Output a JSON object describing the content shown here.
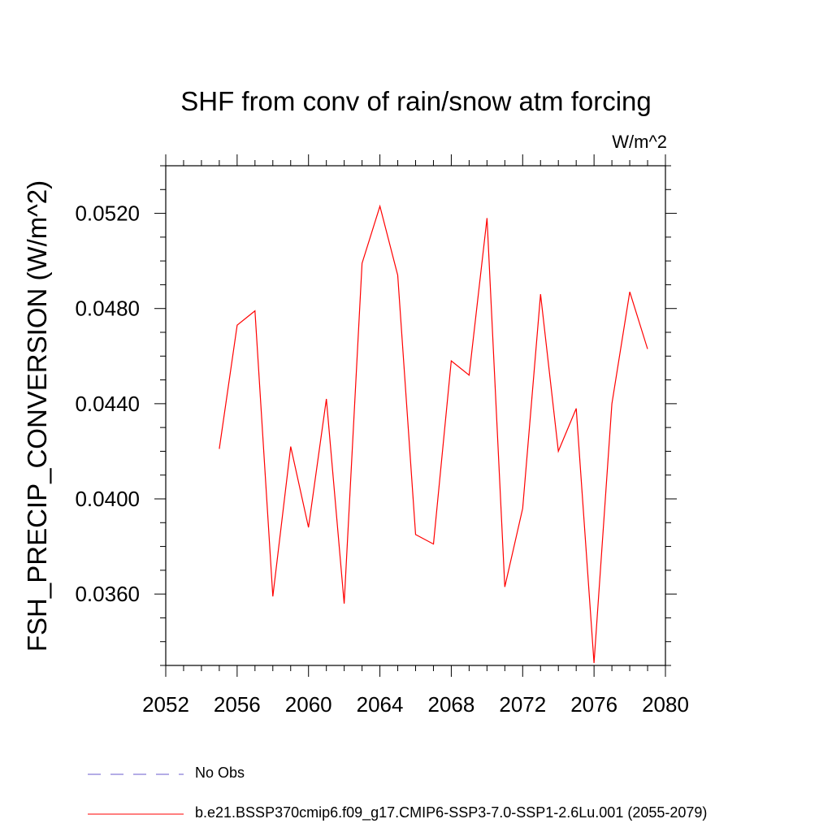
{
  "chart_data": {
    "type": "line",
    "title": "SHF from conv of rain/snow atm forcing",
    "units_label": "W/m^2",
    "xlabel": "",
    "ylabel": "FSH_PRECIP_CONVERSION  (W/m^2)",
    "xlim": [
      2052,
      2080
    ],
    "ylim": [
      0.033,
      0.054
    ],
    "x_ticks": [
      2052,
      2056,
      2060,
      2064,
      2068,
      2072,
      2076,
      2080
    ],
    "y_ticks": [
      0.036,
      0.04,
      0.044,
      0.048,
      0.052
    ],
    "y_tick_labels": [
      "0.0360",
      "0.0400",
      "0.0440",
      "0.0480",
      "0.0520"
    ],
    "grid": false,
    "legend_position": "bottom",
    "series": [
      {
        "name": "No Obs",
        "color": "#6a5acd",
        "style": "dashed",
        "x": [],
        "y": []
      },
      {
        "name": "b.e21.BSSP370cmip6.f09_g17.CMIP6-SSP3-7.0-SSP1-2.6Lu.001 (2055-2079)",
        "color": "#ff0000",
        "style": "solid",
        "x": [
          2055,
          2056,
          2057,
          2058,
          2059,
          2060,
          2061,
          2062,
          2063,
          2064,
          2065,
          2066,
          2067,
          2068,
          2069,
          2070,
          2071,
          2072,
          2073,
          2074,
          2075,
          2076,
          2077,
          2078,
          2079
        ],
        "y": [
          0.0421,
          0.0473,
          0.0479,
          0.0359,
          0.0422,
          0.0388,
          0.0442,
          0.0356,
          0.0499,
          0.0523,
          0.0494,
          0.0385,
          0.0381,
          0.0458,
          0.0452,
          0.0518,
          0.0363,
          0.0396,
          0.0486,
          0.042,
          0.0438,
          0.0331,
          0.044,
          0.0487,
          0.0463
        ]
      }
    ]
  }
}
